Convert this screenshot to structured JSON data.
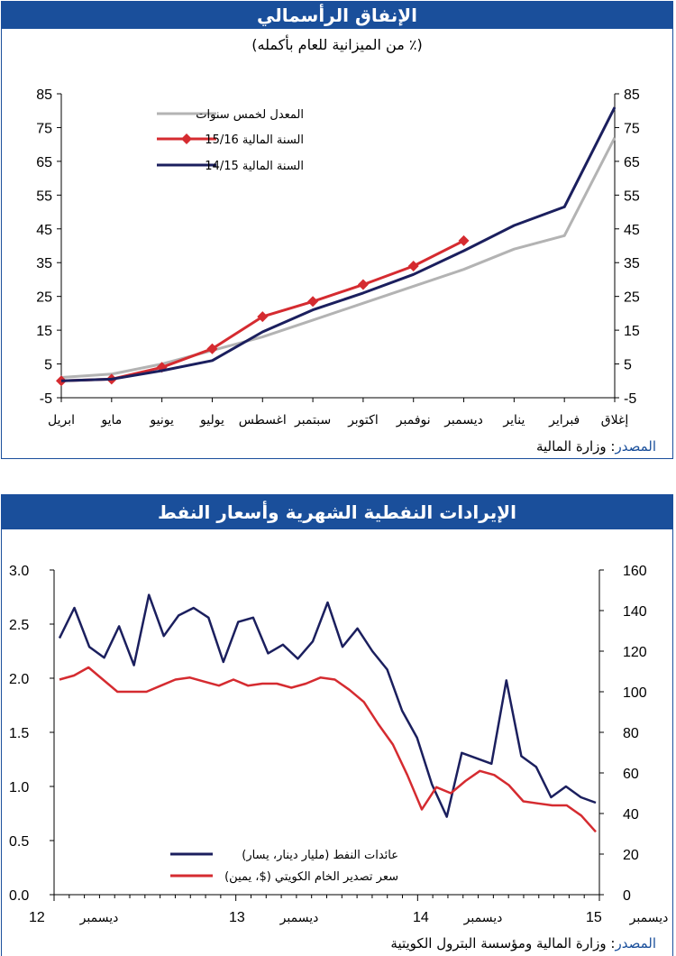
{
  "chart_data": [
    {
      "type": "line",
      "title": "الإنفاق الرأسمالي",
      "subtitle": "(٪ من الميزانية للعام بأكمله)",
      "categories": [
        "ابريل",
        "مايو",
        "يونيو",
        "يوليو",
        "اغسطس",
        "سبتمبر",
        "اكتوبر",
        "نوفمبر",
        "ديسمبر",
        "يناير",
        "فبراير",
        "إغلاق"
      ],
      "ylim": [
        -5,
        85
      ],
      "yticks": [
        -5,
        5,
        15,
        25,
        35,
        45,
        55,
        65,
        75,
        85
      ],
      "grid": false,
      "legend_position": "top-left",
      "series": [
        {
          "name": "المعدل لخمس سنوات",
          "color": "#b3b3b3",
          "values": [
            1,
            2,
            5,
            9,
            13,
            18,
            23,
            28,
            33,
            39,
            43,
            72
          ]
        },
        {
          "name": "السنة المالية 15/16",
          "color": "#d52b30",
          "marker": "diamond",
          "values": [
            0,
            0.5,
            4,
            9.5,
            19,
            23.5,
            28.5,
            34,
            41.5,
            null,
            null,
            null
          ]
        },
        {
          "name": "السنة المالية 14/15",
          "color": "#1b1f5e",
          "values": [
            0,
            0.5,
            3,
            6,
            14.5,
            21,
            26,
            31.5,
            38.5,
            46,
            51.5,
            81
          ]
        }
      ],
      "source_label": "المصدر",
      "source_text": ": وزارة المالية"
    },
    {
      "type": "line",
      "title": "الإيرادات النفطية الشهرية وأسعار النفط",
      "ylim_left": [
        0,
        3
      ],
      "yticks_left": [
        "0.0",
        "0.5",
        "1.0",
        "1.5",
        "2.0",
        "2.5",
        "3.0"
      ],
      "ylim_right": [
        0,
        160
      ],
      "yticks_right": [
        "0",
        "20",
        "40",
        "60",
        "80",
        "100",
        "120",
        "140",
        "160"
      ],
      "x_labels": [
        {
          "month": "ديسمبر",
          "year": "12"
        },
        {
          "month": "ديسمبر",
          "year": "13"
        },
        {
          "month": "ديسمبر",
          "year": "14"
        },
        {
          "month": "ديسمبر",
          "year": "15"
        }
      ],
      "grid": false,
      "legend_position": "bottom-center",
      "series": [
        {
          "name": "عائدات النفط (مليار دينار، يسار)",
          "axis": "left",
          "color": "#1b1f5e",
          "values": [
            2.37,
            2.65,
            2.29,
            2.19,
            2.48,
            2.12,
            2.77,
            2.39,
            2.58,
            2.65,
            2.56,
            2.15,
            2.52,
            2.56,
            2.23,
            2.31,
            2.18,
            2.34,
            2.7,
            2.29,
            2.46,
            2.25,
            2.08,
            1.7,
            1.45,
            1.02,
            0.72,
            1.31,
            1.26,
            1.21,
            1.98,
            1.28,
            1.18,
            0.9,
            1.0,
            0.9,
            0.85
          ]
        },
        {
          "name": "سعر تصدير الخام الكويتي ($، يمين)",
          "axis": "right",
          "color": "#d52b30",
          "values": [
            106,
            108,
            112,
            106,
            100,
            100,
            100,
            103,
            106,
            107,
            105,
            103,
            106,
            103,
            104,
            104,
            102,
            104,
            107,
            106,
            101,
            95,
            84,
            74,
            59,
            42,
            53,
            50,
            56,
            61,
            59,
            54,
            46,
            45,
            44,
            44,
            39,
            31
          ]
        }
      ],
      "source_label": "المصدر",
      "source_text": ": وزارة المالية ومؤسسة البترول الكويتية"
    }
  ]
}
